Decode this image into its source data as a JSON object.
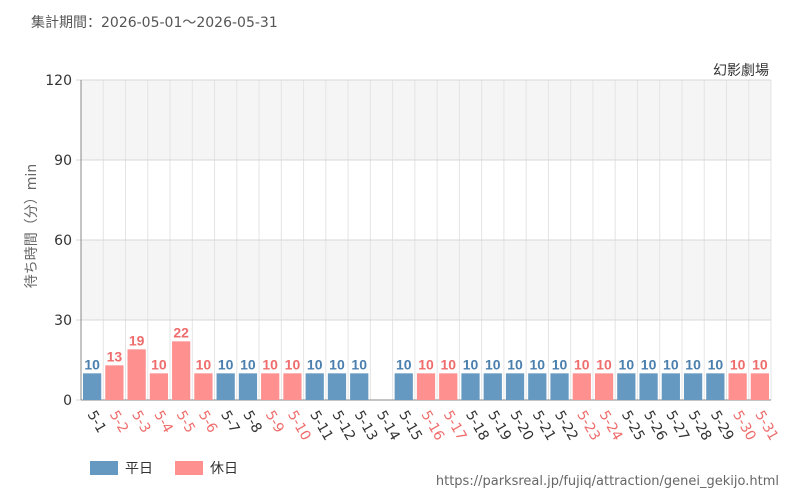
{
  "header": {
    "period_label": "集計期間：2026-05-01～2026-05-31"
  },
  "footer": {
    "url": "https://parksreal.jp/fujiq/attraction/genei_gekijo.html"
  },
  "colors": {
    "weekday": "#6699c2",
    "holiday": "#ff9090",
    "weekday_label": "#4a7fae",
    "holiday_label": "#ef6c6c"
  },
  "chart_data": {
    "type": "bar",
    "title": "幻影劇場",
    "ylabel": "待ち時間（分）min",
    "xlabel": "",
    "ylim": [
      0,
      120
    ],
    "yticks": [
      0,
      30,
      60,
      90,
      120
    ],
    "grid": true,
    "legend_position": "bottom-left",
    "series": [
      {
        "name": "平日",
        "key": "weekday"
      },
      {
        "name": "休日",
        "key": "holiday"
      }
    ],
    "categories": [
      "5-1",
      "5-2",
      "5-3",
      "5-4",
      "5-5",
      "5-6",
      "5-7",
      "5-8",
      "5-9",
      "5-10",
      "5-11",
      "5-12",
      "5-13",
      "5-14",
      "5-15",
      "5-16",
      "5-17",
      "5-18",
      "5-19",
      "5-20",
      "5-21",
      "5-22",
      "5-23",
      "5-24",
      "5-25",
      "5-26",
      "5-27",
      "5-28",
      "5-29",
      "5-30",
      "5-31"
    ],
    "values": [
      10,
      13,
      19,
      10,
      22,
      10,
      10,
      10,
      10,
      10,
      10,
      10,
      10,
      null,
      10,
      10,
      10,
      10,
      10,
      10,
      10,
      10,
      10,
      10,
      10,
      10,
      10,
      10,
      10,
      10,
      10
    ],
    "day_type": [
      "weekday",
      "holiday",
      "holiday",
      "holiday",
      "holiday",
      "holiday",
      "weekday",
      "weekday",
      "holiday",
      "holiday",
      "weekday",
      "weekday",
      "weekday",
      "weekday",
      "weekday",
      "holiday",
      "holiday",
      "weekday",
      "weekday",
      "weekday",
      "weekday",
      "weekday",
      "holiday",
      "holiday",
      "weekday",
      "weekday",
      "weekday",
      "weekday",
      "weekday",
      "holiday",
      "holiday"
    ]
  }
}
